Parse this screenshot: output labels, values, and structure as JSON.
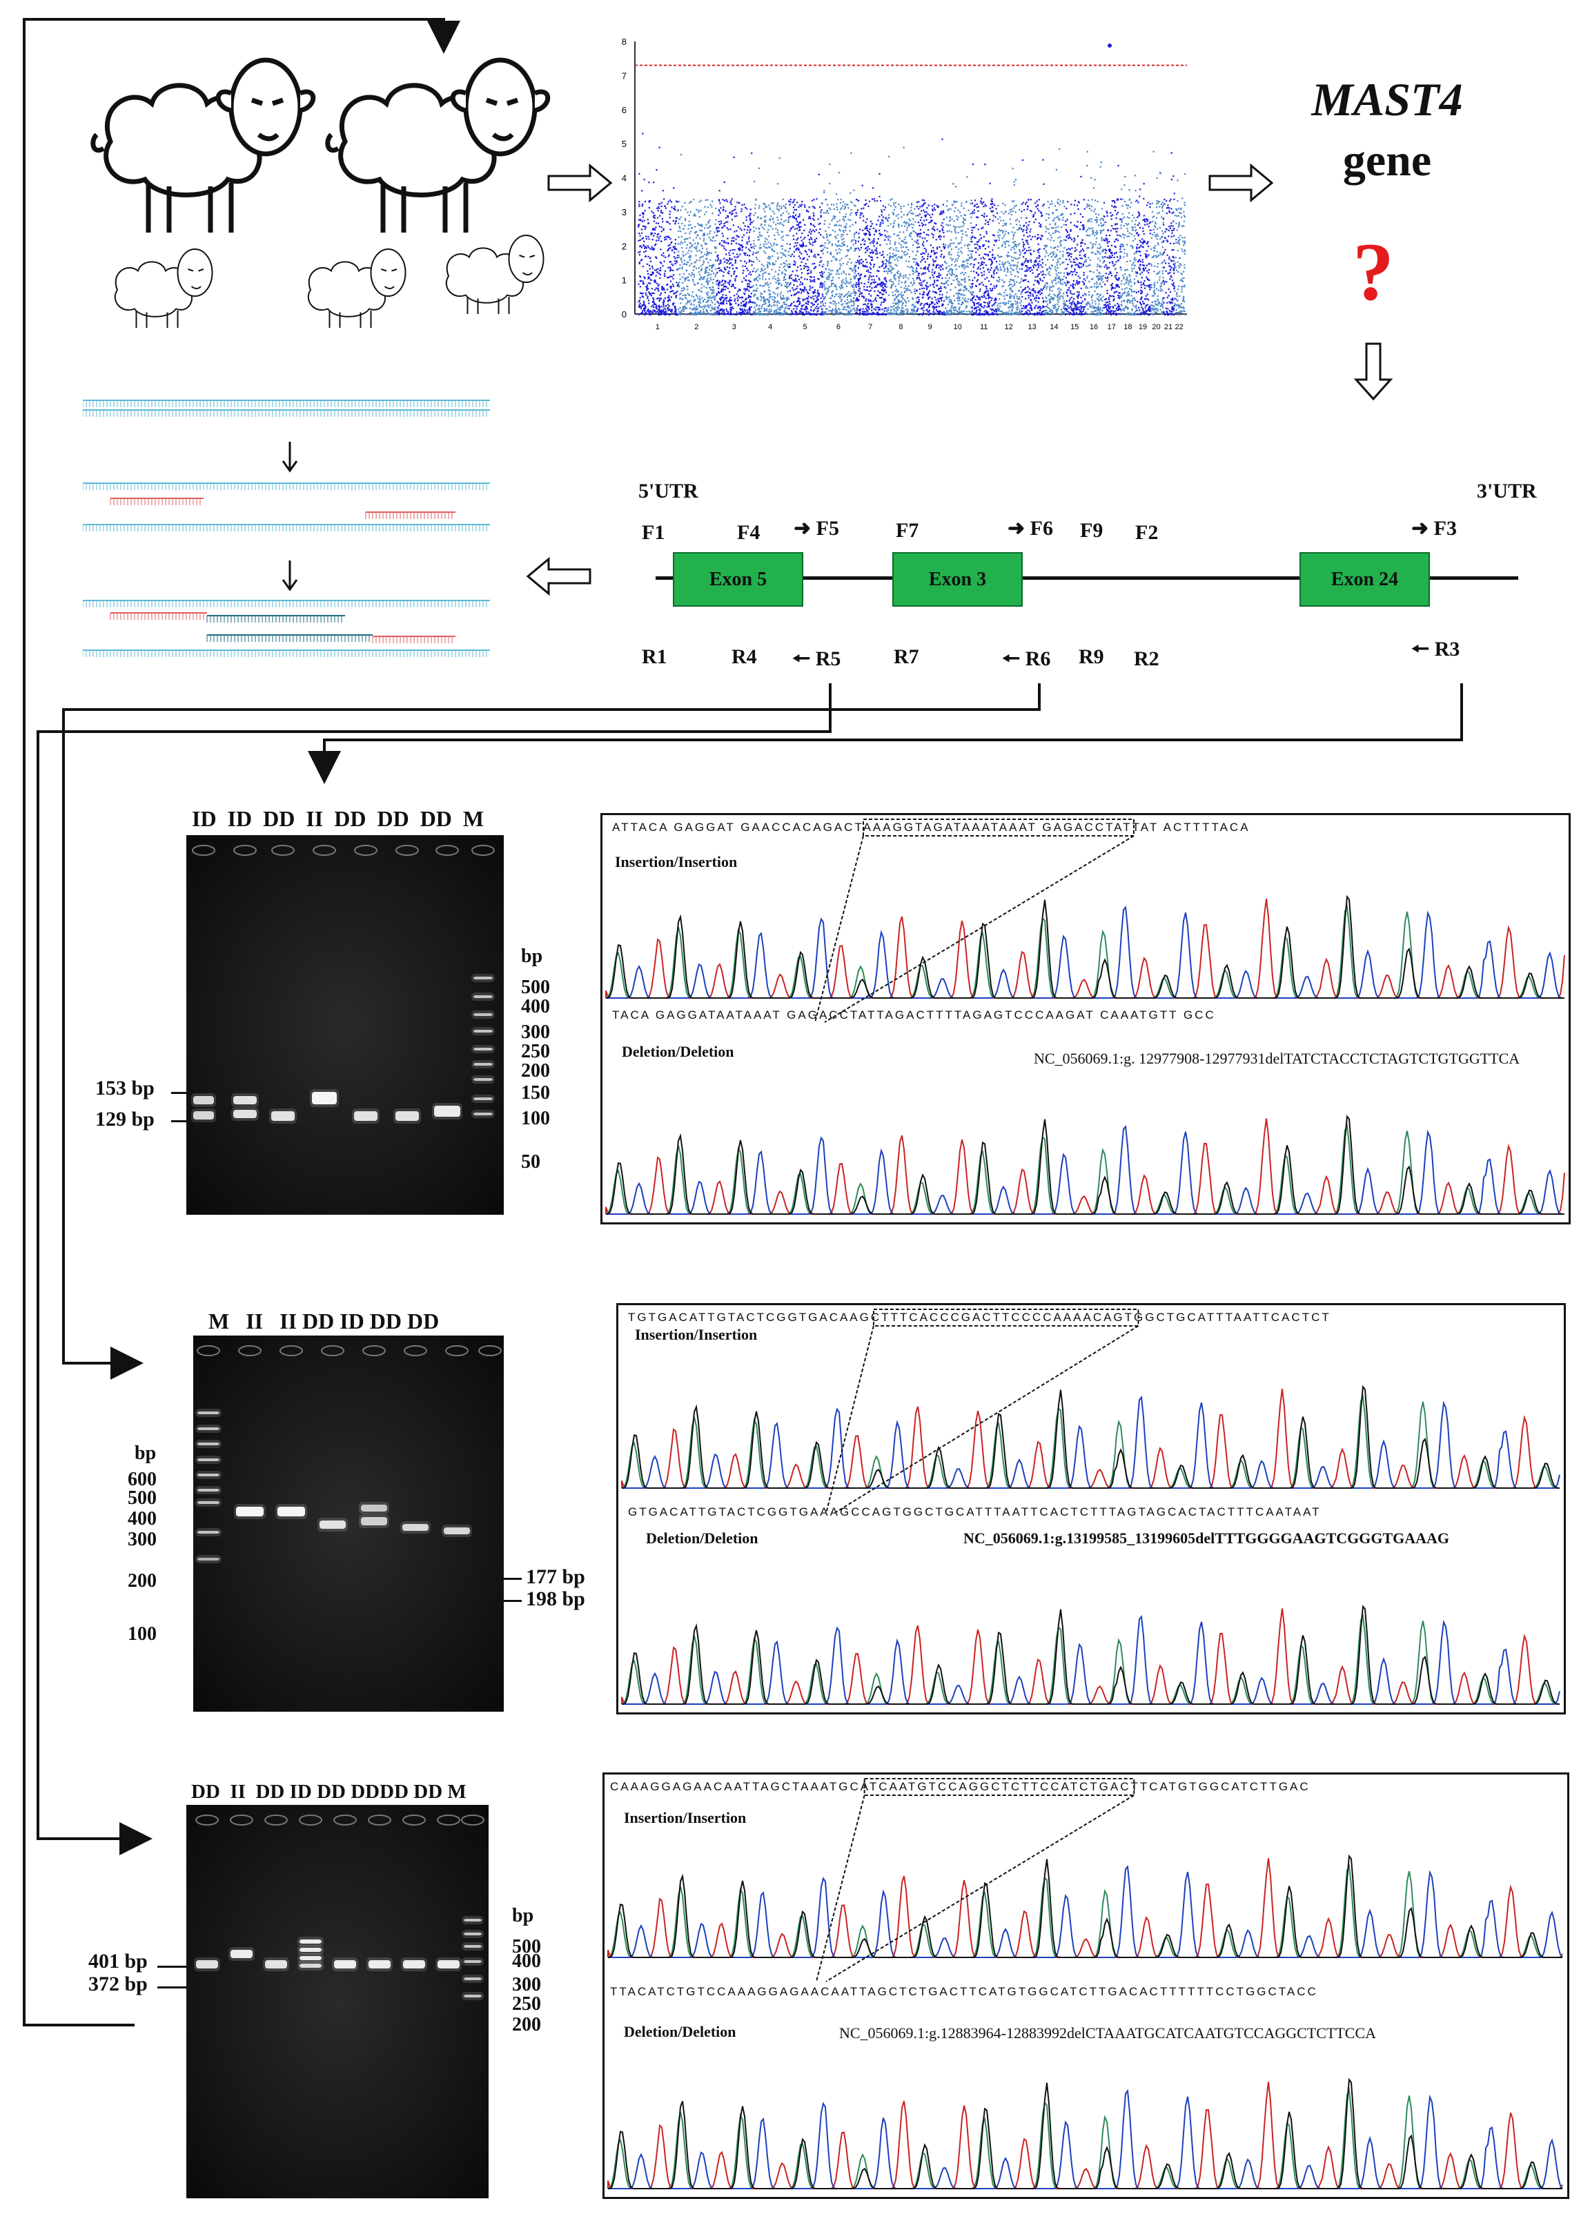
{
  "gwas": {
    "gene_name": "MAST4",
    "gene_word": "gene",
    "question": "?",
    "y_ticks": [
      "0",
      "1",
      "2",
      "3",
      "4",
      "5",
      "6",
      "7",
      "8"
    ],
    "chromosomes": [
      "1",
      "2",
      "3",
      "4",
      "5",
      "6",
      "7",
      "8",
      "9",
      "10",
      "11",
      "12",
      "13",
      "14",
      "15",
      "16",
      "17",
      "18",
      "19",
      "20",
      "21",
      "22"
    ]
  },
  "gene_structure": {
    "utr5": "5'UTR",
    "utr3": "3'UTR",
    "forward_primers": [
      "F1",
      "F4",
      "F5",
      "F7",
      "F6",
      "F9",
      "F2",
      "F3"
    ],
    "reverse_primers": [
      "R1",
      "R4",
      "R5",
      "R7",
      "R6",
      "R9",
      "R2",
      "R3"
    ],
    "exons": [
      "Exon 5",
      "Exon 3",
      "Exon 24"
    ]
  },
  "panels": [
    {
      "lanes": [
        "ID",
        "ID",
        "DD",
        "II",
        "DD",
        "DD",
        "DD",
        "M"
      ],
      "bp_unit": "bp",
      "marker_ladder": [
        "500",
        "400",
        "300",
        "250",
        "200",
        "150",
        "100",
        "50"
      ],
      "band_labels": [
        "153 bp",
        "129 bp"
      ],
      "seq_top": "ATTACA GAGGAT GAACCACAGACTAAAGGTAGATAAATAAAT GAGACCTATTAT ACTTTTACA",
      "seq_mid": "TACA GAGGATAATAAAT GAGACCTATTAGACTTTTAGAGTCCCAAGAT CAAATGTT GCC",
      "label_ins": "Insertion/Insertion",
      "label_del": "Deletion/Deletion",
      "mutation": "NC_056069.1:g. 12977908-12977931delTATCTACCTCTAGTCTGTGGTTCA"
    },
    {
      "lanes": [
        "M",
        "II",
        "II",
        "DD",
        "ID",
        "DD",
        "DD"
      ],
      "bp_unit": "bp",
      "marker_ladder": [
        "600",
        "500",
        "400",
        "300",
        "200",
        "100"
      ],
      "band_labels": [
        "177 bp",
        "198 bp"
      ],
      "seq_top": "TGTGACATTGTACTCGGTGACAAGCTTTCACCCGACTTCCCCAAAACAGTGGCTGCATTTAATTCACTCT",
      "seq_mid": "GTGACATTGTACTCGGTGAAAGCCAGTGGCTGCATTTAATTCACTCTTTAGTAGCACTACTTTCAATAAT",
      "label_ins": "Insertion/Insertion",
      "label_del": "Deletion/Deletion",
      "mutation": "NC_056069.1:g.13199585_13199605delTTTGGGGAAGTCGGGTGAAAG"
    },
    {
      "lanes": [
        "DD",
        "II",
        "DD",
        "ID",
        "DD",
        "DD",
        "DD",
        "DD",
        "M"
      ],
      "bp_unit": "bp",
      "marker_ladder": [
        "500",
        "400",
        "300",
        "250",
        "200"
      ],
      "band_labels": [
        "401 bp",
        "372 bp"
      ],
      "seq_top": "CAAAGGAGAACAATTAGCTAAATGCATCAATGTCCAGGCTCTTCCATCTGACTTCATGTGGCATCTTGAC",
      "seq_mid": "TTACATCTGTCCAAAGGAGAACAATTAGCTCTGACTTCATGTGGCATCTTGACACTTTTTTCCTGGCTACC",
      "label_ins": "Insertion/Insertion",
      "label_del": "Deletion/Deletion",
      "mutation": "NC_056069.1:g.12883964-12883992delCTAAATGCATCAATGTCCAGGCTCTTCCA"
    }
  ],
  "colors": {
    "gwas_dark": "#1a1adb",
    "gwas_light": "#4a86c8",
    "threshold": "#d62728",
    "exon": "#22b14c",
    "dna_blue": "#5fb8d6",
    "primer_red": "#e06060"
  }
}
